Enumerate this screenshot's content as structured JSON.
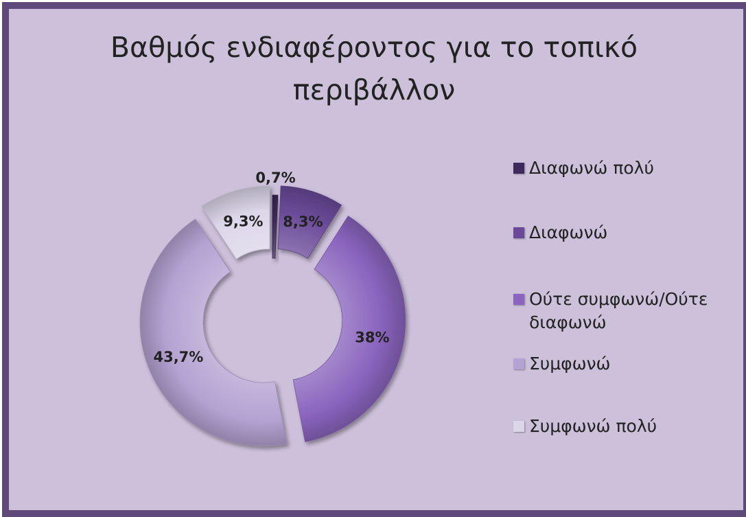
{
  "chart_data": {
    "type": "doughnut",
    "title": "Βαθμός ενδιαφέροντος για το τοπικό περιβάλλον",
    "title_lines": [
      "Βαθμός ενδιαφέροντος για το τοπικό",
      "περιβάλλον"
    ],
    "legend_position": "right",
    "slices": [
      {
        "label": "Διαφωνώ πολύ",
        "value": 0.7,
        "data_label": "0,7%",
        "color": "#3f2a5c",
        "exploded": false
      },
      {
        "label": "Διαφωνώ",
        "value": 8.3,
        "data_label": "8,3%",
        "color": "#6a4a98",
        "exploded": true
      },
      {
        "label": "Ούτε συμφωνώ/Ούτε διαφωνώ",
        "value": 38,
        "data_label": "38%",
        "color": "#8a64be",
        "exploded": true
      },
      {
        "label": "Συμφωνώ",
        "value": 43.7,
        "data_label": "43,7%",
        "color": "#b4a2d2",
        "exploded": true
      },
      {
        "label": "Συμφωνώ πολύ",
        "value": 9.3,
        "data_label": "9,3%",
        "color": "#dcd6e9",
        "exploded": true
      }
    ]
  },
  "colors": {
    "frame_border": "#5f497a",
    "plot_background": "#ccc0da"
  }
}
